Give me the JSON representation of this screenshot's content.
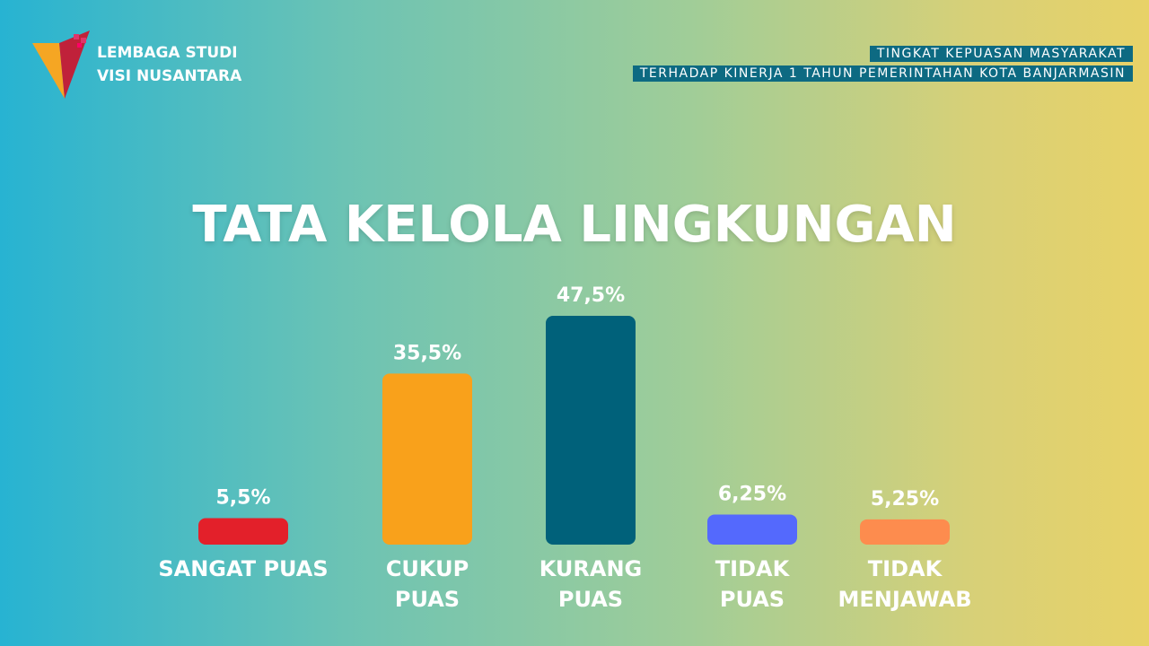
{
  "logo": {
    "line1": "LEMBAGA STUDI",
    "line2": "VISI NUSANTARA"
  },
  "header": {
    "line1": "TINGKAT KEPUASAN MASYARAKAT",
    "line2": "TERHADAP KINERJA 1 TAHUN PEMERINTAHAN KOTA BANJARMASIN"
  },
  "chart_data": {
    "type": "bar",
    "title": "TATA KELOLA LINGKUNGAN",
    "categories": [
      "SANGAT PUAS",
      "CUKUP\nPUAS",
      "KURANG\nPUAS",
      "TIDAK\nPUAS",
      "TIDAK\nMENJAWAB"
    ],
    "values": [
      5.5,
      35.5,
      47.5,
      6.25,
      5.25
    ],
    "value_labels": [
      "5,5%",
      "35,5%",
      "47,5%",
      "6,25%",
      "5,25%"
    ],
    "colors": [
      "#e3202a",
      "#f9a11b",
      "#00617a",
      "#5469fd",
      "#fd8c4e"
    ]
  }
}
